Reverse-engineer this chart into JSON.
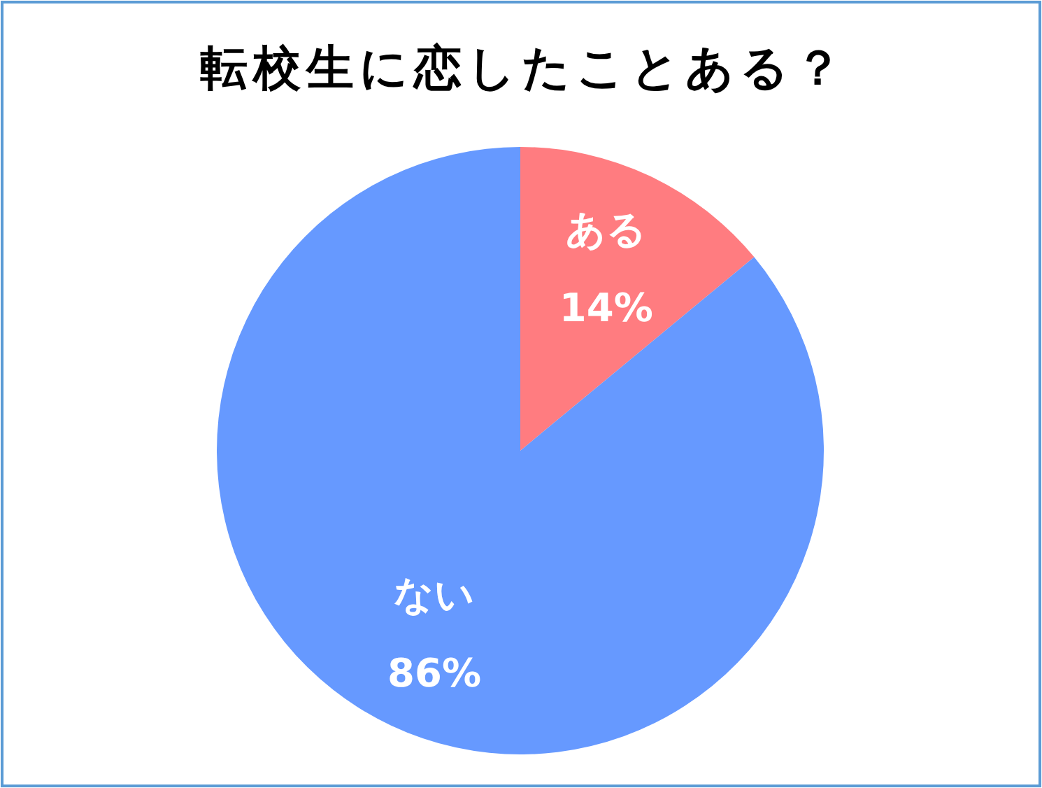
{
  "chart_data": {
    "type": "pie",
    "title": "転校生に恋したことある？",
    "categories": [
      "ある",
      "ない"
    ],
    "values": [
      14,
      86
    ],
    "colors": [
      "#ff7c80",
      "#6699ff"
    ],
    "value_labels": [
      "14%",
      "86%"
    ]
  }
}
